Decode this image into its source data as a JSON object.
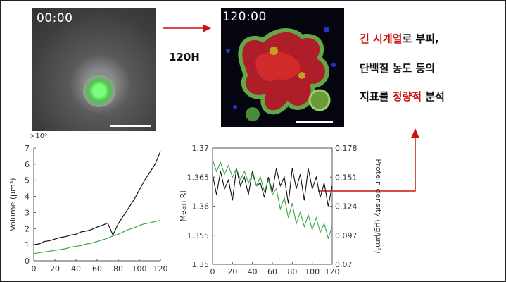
{
  "images": {
    "left": {
      "timestamp": "00:00"
    },
    "right": {
      "timestamp": "120:00"
    }
  },
  "arrow_label": "120H",
  "caption": {
    "line1": {
      "highlight": "긴 시계열",
      "rest": "로 부피,"
    },
    "line2": "단백질 농도 등의",
    "line3": {
      "prefix": "지표를 ",
      "highlight": "정량적",
      "suffix": " 분석"
    }
  },
  "colors": {
    "accent_red": "#cc1111",
    "black_series": "#111111",
    "green_series": "#3aa845"
  },
  "chart_data": [
    {
      "type": "line",
      "title": "",
      "xlabel": "",
      "ylabel": "Volume (μm³)",
      "y_multiplier": "×10⁵",
      "xlim": [
        0,
        120
      ],
      "ylim": [
        0,
        7
      ],
      "xticks": [
        "0",
        "20",
        "40",
        "60",
        "80",
        "100",
        "120"
      ],
      "yticks": [
        "0",
        "1",
        "2",
        "3",
        "4",
        "5",
        "6",
        "7"
      ],
      "series": [
        {
          "color": "#111111",
          "x": [
            0,
            5,
            10,
            15,
            20,
            25,
            30,
            35,
            40,
            45,
            50,
            55,
            60,
            65,
            70,
            75,
            80,
            85,
            90,
            95,
            100,
            105,
            110,
            115,
            120
          ],
          "y": [
            1.0,
            1.05,
            1.2,
            1.25,
            1.35,
            1.45,
            1.5,
            1.6,
            1.65,
            1.8,
            1.85,
            1.95,
            2.1,
            2.2,
            2.35,
            1.6,
            2.3,
            2.8,
            3.3,
            3.8,
            4.4,
            5.0,
            5.5,
            6.0,
            6.8
          ]
        },
        {
          "color": "#3aa845",
          "x": [
            0,
            5,
            10,
            15,
            20,
            25,
            30,
            35,
            40,
            45,
            50,
            55,
            60,
            65,
            70,
            75,
            80,
            85,
            90,
            95,
            100,
            105,
            110,
            115,
            120
          ],
          "y": [
            0.45,
            0.5,
            0.55,
            0.6,
            0.65,
            0.7,
            0.75,
            0.85,
            0.9,
            0.95,
            1.05,
            1.1,
            1.2,
            1.3,
            1.4,
            1.55,
            1.65,
            1.8,
            1.95,
            2.05,
            2.2,
            2.3,
            2.35,
            2.45,
            2.5
          ]
        }
      ]
    },
    {
      "type": "line",
      "title": "",
      "xlabel": "",
      "ylabel": "Mean RI",
      "y2label": "Protein density (μg/μm³)",
      "xlim": [
        0,
        120
      ],
      "ylim": [
        1.35,
        1.37
      ],
      "y2lim": [
        0.07,
        0.178
      ],
      "xticks": [
        "0",
        "20",
        "40",
        "60",
        "80",
        "100",
        "120"
      ],
      "yticks": [
        "1.35",
        "1.355",
        "1.36",
        "1.365",
        "1.37"
      ],
      "y2ticks": [
        "0.07",
        "0.097",
        "0.124",
        "0.151",
        "0.178"
      ],
      "series": [
        {
          "color": "#111111",
          "x": [
            0,
            4,
            8,
            12,
            16,
            20,
            24,
            28,
            32,
            36,
            40,
            44,
            48,
            52,
            56,
            60,
            64,
            68,
            72,
            76,
            80,
            84,
            88,
            92,
            96,
            100,
            104,
            108,
            112,
            116,
            120
          ],
          "y": [
            1.3655,
            1.362,
            1.366,
            1.363,
            1.3645,
            1.361,
            1.3665,
            1.3635,
            1.365,
            1.362,
            1.366,
            1.3635,
            1.364,
            1.3615,
            1.365,
            1.3625,
            1.3665,
            1.3635,
            1.365,
            1.3605,
            1.3665,
            1.363,
            1.3655,
            1.361,
            1.3665,
            1.363,
            1.365,
            1.3615,
            1.364,
            1.36,
            1.3635
          ]
        },
        {
          "color": "#3aa845",
          "x": [
            0,
            4,
            8,
            12,
            16,
            20,
            24,
            28,
            32,
            36,
            40,
            44,
            48,
            52,
            56,
            60,
            64,
            68,
            72,
            76,
            80,
            84,
            88,
            92,
            96,
            100,
            104,
            108,
            112,
            116,
            120
          ],
          "y": [
            1.368,
            1.366,
            1.3675,
            1.3655,
            1.367,
            1.365,
            1.3665,
            1.3645,
            1.366,
            1.364,
            1.3655,
            1.3635,
            1.365,
            1.3625,
            1.3645,
            1.362,
            1.363,
            1.3595,
            1.3615,
            1.358,
            1.3605,
            1.357,
            1.359,
            1.3565,
            1.3585,
            1.356,
            1.358,
            1.3555,
            1.357,
            1.3545,
            1.3565
          ]
        }
      ]
    }
  ]
}
